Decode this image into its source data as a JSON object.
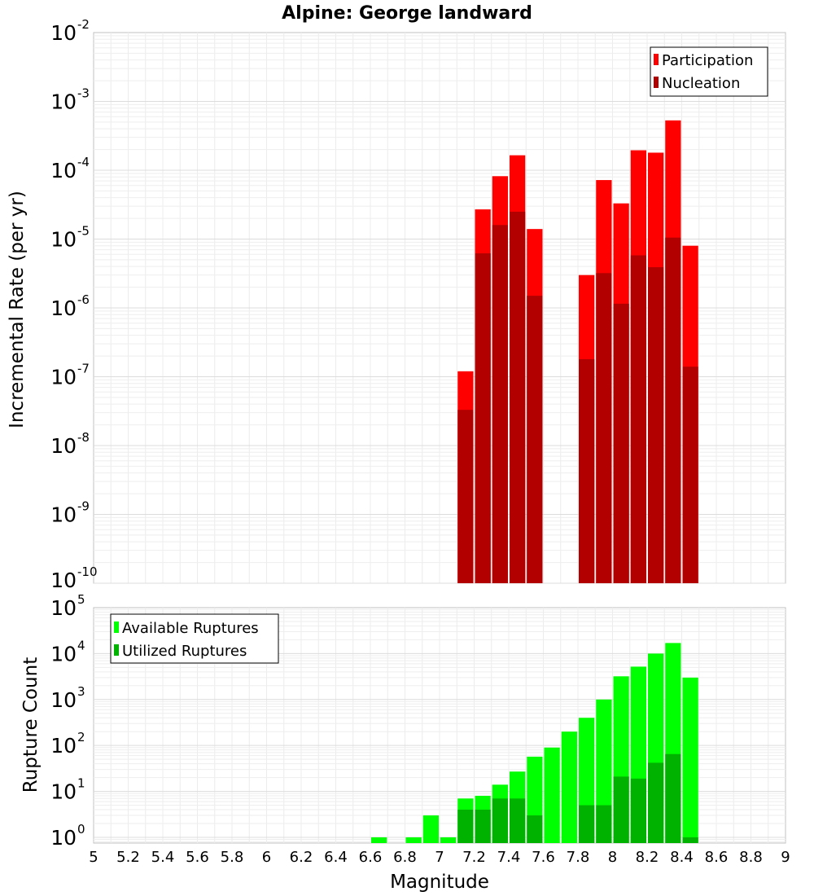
{
  "chart_data": {
    "title": "Alpine: George landward",
    "xlabel": "Magnitude",
    "x_ticks": [
      "5",
      "5.2",
      "5.4",
      "5.6",
      "5.8",
      "6",
      "6.2",
      "6.4",
      "6.6",
      "6.8",
      "7",
      "7.2",
      "7.4",
      "7.6",
      "7.8",
      "8",
      "8.2",
      "8.4",
      "8.6",
      "8.8",
      "9"
    ],
    "xlim": [
      5,
      9
    ],
    "bin_width": 0.1,
    "panels": [
      {
        "type": "bar",
        "ylabel": "Incremental Rate (per yr)",
        "y_scale": "log",
        "ylim": [
          1e-10,
          0.01
        ],
        "y_ticks": [
          {
            "base": "10",
            "exp": "-2"
          },
          {
            "base": "10",
            "exp": "-3"
          },
          {
            "base": "10",
            "exp": "-4"
          },
          {
            "base": "10",
            "exp": "-5"
          },
          {
            "base": "10",
            "exp": "-6"
          },
          {
            "base": "10",
            "exp": "-7"
          },
          {
            "base": "10",
            "exp": "-8"
          },
          {
            "base": "10",
            "exp": "-9"
          },
          {
            "base": "10",
            "exp": "-10"
          }
        ],
        "legend_position": "top-right",
        "series": [
          {
            "name": "Participation",
            "color": "#ff0000",
            "points": [
              {
                "x": 7.15,
                "y": 1.2e-07
              },
              {
                "x": 7.25,
                "y": 2.7e-05
              },
              {
                "x": 7.35,
                "y": 8.2e-05
              },
              {
                "x": 7.45,
                "y": 0.000165
              },
              {
                "x": 7.55,
                "y": 1.4e-05
              },
              {
                "x": 7.85,
                "y": 3e-06
              },
              {
                "x": 7.95,
                "y": 7.2e-05
              },
              {
                "x": 8.05,
                "y": 3.3e-05
              },
              {
                "x": 8.15,
                "y": 0.000195
              },
              {
                "x": 8.25,
                "y": 0.00018
              },
              {
                "x": 8.35,
                "y": 0.00053
              },
              {
                "x": 8.45,
                "y": 8e-06
              }
            ]
          },
          {
            "name": "Nucleation",
            "color": "#b20000",
            "points": [
              {
                "x": 7.15,
                "y": 3.3e-08
              },
              {
                "x": 7.25,
                "y": 6.2e-06
              },
              {
                "x": 7.35,
                "y": 1.6e-05
              },
              {
                "x": 7.45,
                "y": 2.5e-05
              },
              {
                "x": 7.55,
                "y": 1.5e-06
              },
              {
                "x": 7.85,
                "y": 1.8e-07
              },
              {
                "x": 7.95,
                "y": 3.2e-06
              },
              {
                "x": 8.05,
                "y": 1.15e-06
              },
              {
                "x": 8.15,
                "y": 5.8e-06
              },
              {
                "x": 8.25,
                "y": 3.9e-06
              },
              {
                "x": 8.35,
                "y": 1.05e-05
              },
              {
                "x": 8.45,
                "y": 1.4e-07
              }
            ]
          }
        ]
      },
      {
        "type": "bar",
        "ylabel": "Rupture Count",
        "y_scale": "log",
        "ylim": [
          0.75,
          100000
        ],
        "y_ticks": [
          {
            "value": 100000,
            "base": "10",
            "exp": "5"
          },
          {
            "value": 10000,
            "base": "10",
            "exp": "4"
          },
          {
            "value": 1000,
            "base": "10",
            "exp": "3"
          },
          {
            "value": 100,
            "base": "10",
            "exp": "2"
          },
          {
            "value": 10,
            "base": "10",
            "exp": "1"
          },
          {
            "value": 1,
            "base": "10",
            "exp": "0"
          }
        ],
        "legend_position": "top-left",
        "series": [
          {
            "name": "Available Ruptures",
            "color": "#00ff00",
            "points": [
              {
                "x": 6.65,
                "y": 1
              },
              {
                "x": 6.85,
                "y": 1
              },
              {
                "x": 6.95,
                "y": 3
              },
              {
                "x": 7.05,
                "y": 1
              },
              {
                "x": 7.15,
                "y": 7
              },
              {
                "x": 7.25,
                "y": 8
              },
              {
                "x": 7.35,
                "y": 14
              },
              {
                "x": 7.45,
                "y": 27
              },
              {
                "x": 7.55,
                "y": 57
              },
              {
                "x": 7.65,
                "y": 90
              },
              {
                "x": 7.75,
                "y": 200
              },
              {
                "x": 7.85,
                "y": 400
              },
              {
                "x": 7.95,
                "y": 1000
              },
              {
                "x": 8.05,
                "y": 3200
              },
              {
                "x": 8.15,
                "y": 5200
              },
              {
                "x": 8.25,
                "y": 10000
              },
              {
                "x": 8.35,
                "y": 17000
              },
              {
                "x": 8.45,
                "y": 3000
              }
            ]
          },
          {
            "name": "Utilized Ruptures",
            "color": "#00b200",
            "points": [
              {
                "x": 7.15,
                "y": 4
              },
              {
                "x": 7.25,
                "y": 4
              },
              {
                "x": 7.35,
                "y": 7
              },
              {
                "x": 7.45,
                "y": 7
              },
              {
                "x": 7.55,
                "y": 3
              },
              {
                "x": 7.85,
                "y": 5
              },
              {
                "x": 7.95,
                "y": 5
              },
              {
                "x": 8.05,
                "y": 21
              },
              {
                "x": 8.15,
                "y": 19
              },
              {
                "x": 8.25,
                "y": 42
              },
              {
                "x": 8.35,
                "y": 65
              },
              {
                "x": 8.45,
                "y": 1
              }
            ]
          }
        ]
      }
    ]
  }
}
